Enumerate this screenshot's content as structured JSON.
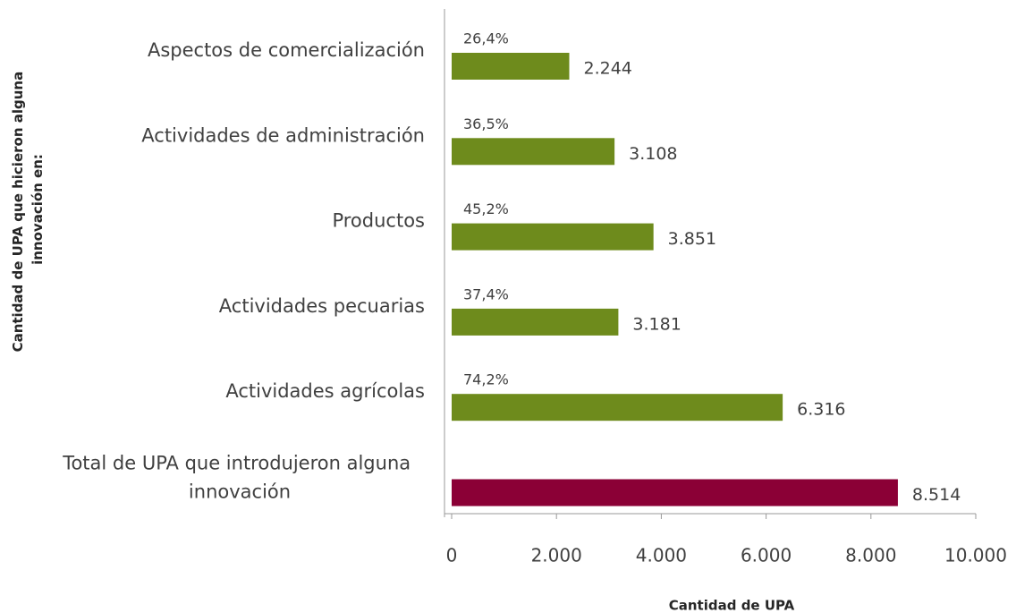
{
  "chart_data": {
    "type": "bar",
    "orientation": "horizontal",
    "categories": [
      "Aspectos de comercialización",
      "Actividades de administración",
      "Productos",
      "Actividades pecuarias",
      "Actividades agrícolas",
      "Total de UPA que introdujeron alguna innovación"
    ],
    "values": [
      2244,
      3108,
      3851,
      3181,
      6316,
      8514
    ],
    "value_labels": [
      "2.244",
      "3.108",
      "3.851",
      "3.181",
      "6.316",
      "8.514"
    ],
    "percent_labels": [
      "26,4%",
      "36,5%",
      "45,2%",
      "37,4%",
      "74,2%",
      null
    ],
    "colors": [
      "#6e8b1c",
      "#6e8b1c",
      "#6e8b1c",
      "#6e8b1c",
      "#6e8b1c",
      "#8b0036"
    ],
    "xlim": [
      0,
      10000
    ],
    "xticks": [
      0,
      {
        "value": 2000,
        "label": "2.000"
      },
      {
        "value": 4000,
        "label": "4.000"
      },
      {
        "value": 6000,
        "label": "6.000"
      },
      {
        "value": 8000,
        "label": "8.000"
      },
      {
        "value": 10000,
        "label": "10.000"
      }
    ],
    "xlabel": "Cantidad de UPA",
    "ylabel": "Cantidad de UPA que hicieron alguna innovación en:"
  }
}
